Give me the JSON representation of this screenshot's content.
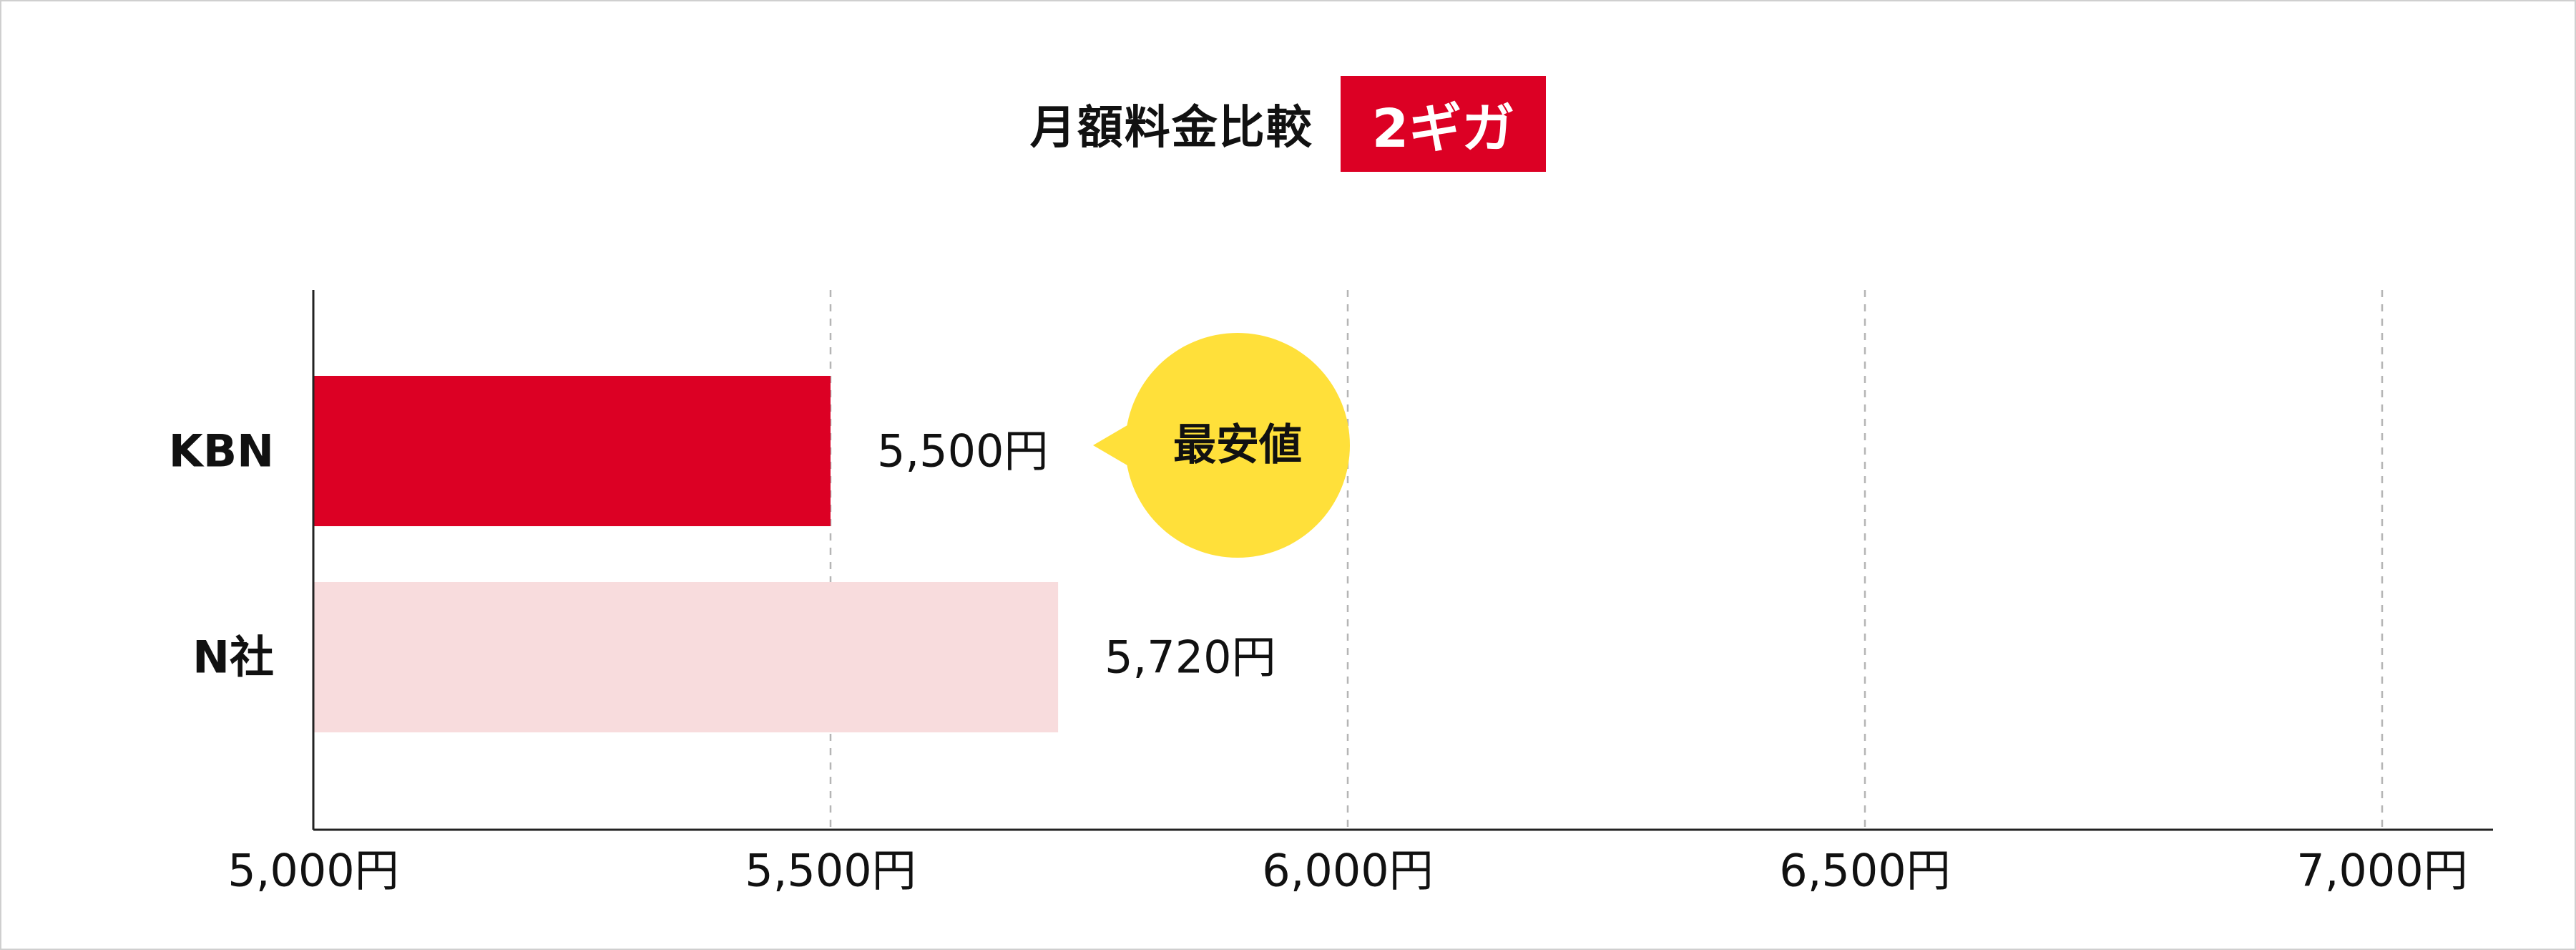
{
  "title": {
    "text": "月額料金比較",
    "badge": "2ギガ",
    "badge_color": "#dc0024"
  },
  "chart_data": {
    "type": "bar",
    "orientation": "horizontal",
    "categories": [
      "KBN",
      "N社"
    ],
    "values": [
      5500,
      5720
    ],
    "value_labels": [
      "5,500円",
      "5,720円"
    ],
    "bar_colors": [
      "#dc0024",
      "#f8dcdd"
    ],
    "xlim": [
      5000,
      7000
    ],
    "xticks": [
      5000,
      5500,
      6000,
      6500,
      7000
    ],
    "xtick_labels": [
      "5,000円",
      "5,500円",
      "6,000円",
      "6,500円",
      "7,000円"
    ],
    "grid": "vertical-dashed",
    "callout": {
      "text": "最安値",
      "target": "KBN",
      "color": "#ffe03a"
    }
  }
}
